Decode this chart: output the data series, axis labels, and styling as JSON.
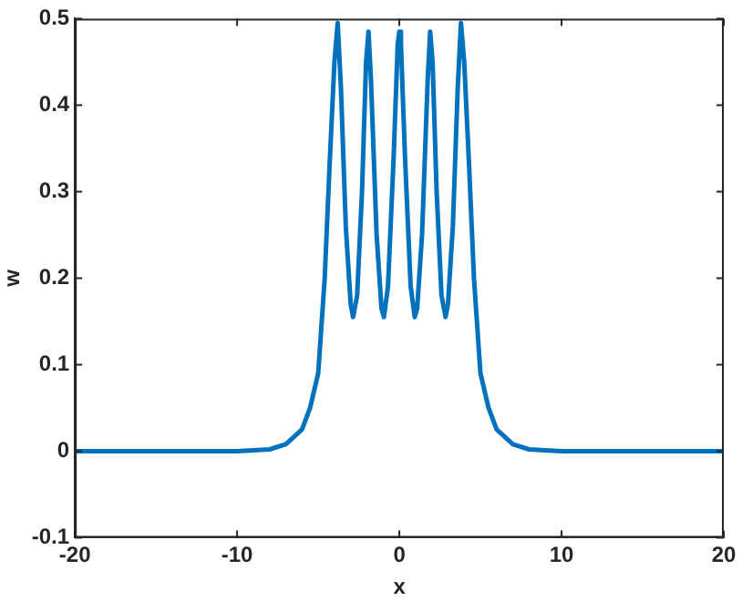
{
  "chart_data": {
    "type": "line",
    "xlabel": "x",
    "ylabel": "w",
    "xlim": [
      -20,
      20
    ],
    "ylim": [
      -0.1,
      0.5
    ],
    "xticks": [
      -20,
      -10,
      0,
      10,
      20
    ],
    "yticks": [
      -0.1,
      0,
      0.1,
      0.2,
      0.3,
      0.4,
      0.5
    ],
    "grid": false,
    "legend": false,
    "marker": "none",
    "line_style": "solid",
    "series": [
      {
        "color": "#0072bd",
        "x": [
          -20,
          -10,
          -8,
          -7,
          -6,
          -5.5,
          -5,
          -4.6,
          -4.3,
          -4,
          -3.8,
          -3.6,
          -3.3,
          -3,
          -2.85,
          -2.6,
          -2.3,
          -2.05,
          -1.9,
          -1.75,
          -1.4,
          -1.1,
          -0.95,
          -0.7,
          -0.35,
          -0.1,
          0,
          0.1,
          0.35,
          0.7,
          0.95,
          1.1,
          1.4,
          1.75,
          1.9,
          2.05,
          2.3,
          2.6,
          2.85,
          3,
          3.3,
          3.6,
          3.8,
          4,
          4.3,
          4.6,
          5,
          5.5,
          6,
          7,
          8,
          10,
          20
        ],
        "values": [
          0,
          0,
          0.002,
          0.008,
          0.025,
          0.05,
          0.09,
          0.2,
          0.33,
          0.45,
          0.495,
          0.42,
          0.26,
          0.17,
          0.155,
          0.18,
          0.3,
          0.45,
          0.485,
          0.43,
          0.25,
          0.165,
          0.155,
          0.19,
          0.34,
          0.47,
          0.485,
          0.47,
          0.34,
          0.19,
          0.155,
          0.165,
          0.25,
          0.43,
          0.485,
          0.45,
          0.3,
          0.18,
          0.155,
          0.17,
          0.26,
          0.42,
          0.495,
          0.45,
          0.33,
          0.2,
          0.09,
          0.05,
          0.025,
          0.008,
          0.002,
          0,
          0
        ]
      }
    ]
  }
}
